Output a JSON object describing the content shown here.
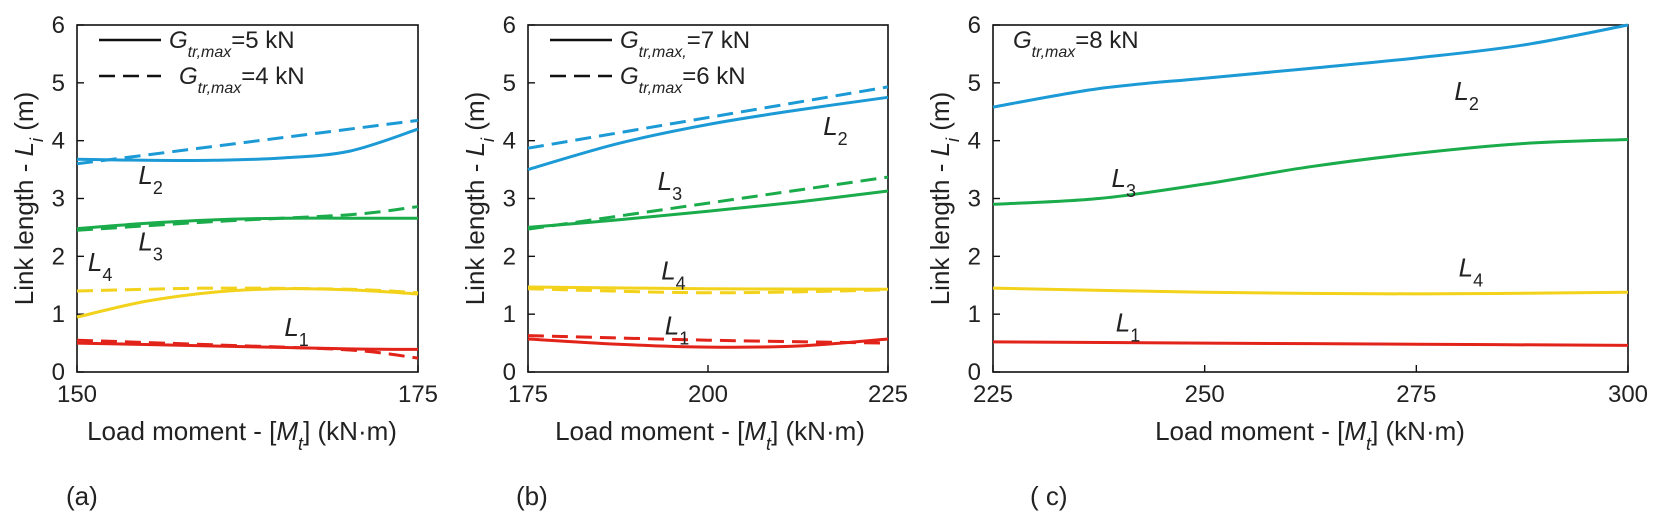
{
  "colors": {
    "L1": "#e2231a",
    "L2": "#1b9ad6",
    "L3": "#1aab4b",
    "L4": "#f2d21b"
  },
  "chart_data": [
    {
      "type": "line",
      "panel_label": "(a)",
      "xlabel": "Load moment - [Mt] (kN·m)",
      "ylabel": "Link length - Li (m)",
      "xlim": [
        150,
        175
      ],
      "ylim": [
        0,
        6
      ],
      "xticks": [
        150,
        175
      ],
      "yticks": [
        0,
        1,
        2,
        3,
        4,
        5,
        6
      ],
      "legend": [
        {
          "style": "solid",
          "text": "Gtr,max=5 kN"
        },
        {
          "style": "dashed",
          "text": "Gtr,max=4 kN"
        }
      ],
      "series": [
        {
          "name": "L2",
          "color_key": "L2",
          "dashed": false,
          "x": [
            150,
            155,
            160,
            165,
            170,
            175
          ],
          "y": [
            3.68,
            3.66,
            3.66,
            3.7,
            3.82,
            4.2
          ]
        },
        {
          "name": "L2",
          "color_key": "L2",
          "dashed": true,
          "x": [
            150,
            175
          ],
          "y": [
            3.6,
            4.35
          ]
        },
        {
          "name": "L3",
          "color_key": "L3",
          "dashed": false,
          "x": [
            150,
            155,
            160,
            165,
            170,
            175
          ],
          "y": [
            2.48,
            2.57,
            2.63,
            2.66,
            2.66,
            2.66
          ]
        },
        {
          "name": "L3",
          "color_key": "L3",
          "dashed": true,
          "x": [
            150,
            160,
            170,
            175
          ],
          "y": [
            2.45,
            2.6,
            2.72,
            2.86
          ]
        },
        {
          "name": "L4",
          "color_key": "L4",
          "dashed": false,
          "x": [
            150,
            155,
            160,
            165,
            170,
            175
          ],
          "y": [
            0.95,
            1.22,
            1.38,
            1.44,
            1.42,
            1.35
          ]
        },
        {
          "name": "L4",
          "color_key": "L4",
          "dashed": true,
          "x": [
            150,
            160,
            170,
            175
          ],
          "y": [
            1.4,
            1.45,
            1.43,
            1.37
          ]
        },
        {
          "name": "L1",
          "color_key": "L1",
          "dashed": false,
          "x": [
            150,
            160,
            170,
            175
          ],
          "y": [
            0.5,
            0.45,
            0.4,
            0.39
          ]
        },
        {
          "name": "L1",
          "color_key": "L1",
          "dashed": true,
          "x": [
            150,
            160,
            170,
            175
          ],
          "y": [
            0.55,
            0.47,
            0.38,
            0.24
          ]
        }
      ],
      "annotations": [
        {
          "text": "L2",
          "x": 154.5,
          "y": 3.25
        },
        {
          "text": "L3",
          "x": 154.5,
          "y": 2.1
        },
        {
          "text": "L4",
          "x": 150.8,
          "y": 1.75
        },
        {
          "text": "L1",
          "x": 165.2,
          "y": 0.62
        }
      ]
    },
    {
      "type": "line",
      "panel_label": "(b)",
      "xlabel": "Load moment - [Mt] (kN·m)",
      "ylabel": "Link length - Li (m)",
      "xlim": [
        175,
        225
      ],
      "ylim": [
        0,
        6
      ],
      "xticks": [
        175,
        200,
        225
      ],
      "yticks": [
        0,
        1,
        2,
        3,
        4,
        5,
        6
      ],
      "legend": [
        {
          "style": "solid",
          "text": "Gtr,max,=7 kN"
        },
        {
          "style": "dashed",
          "text": "Gtr,max=6 kN"
        }
      ],
      "series": [
        {
          "name": "L2",
          "color_key": "L2",
          "dashed": false,
          "x": [
            175,
            187.5,
            200,
            212.5,
            225
          ],
          "y": [
            3.5,
            3.95,
            4.28,
            4.53,
            4.75
          ]
        },
        {
          "name": "L2",
          "color_key": "L2",
          "dashed": true,
          "x": [
            175,
            225
          ],
          "y": [
            3.87,
            4.93
          ]
        },
        {
          "name": "L3",
          "color_key": "L3",
          "dashed": false,
          "x": [
            175,
            187.5,
            200,
            212.5,
            225
          ],
          "y": [
            2.5,
            2.63,
            2.78,
            2.94,
            3.13
          ]
        },
        {
          "name": "L3",
          "color_key": "L3",
          "dashed": true,
          "x": [
            175,
            225
          ],
          "y": [
            2.47,
            3.37
          ]
        },
        {
          "name": "L4",
          "color_key": "L4",
          "dashed": false,
          "x": [
            175,
            200,
            225
          ],
          "y": [
            1.47,
            1.44,
            1.43
          ]
        },
        {
          "name": "L4",
          "color_key": "L4",
          "dashed": true,
          "x": [
            175,
            200,
            225
          ],
          "y": [
            1.44,
            1.37,
            1.42
          ]
        },
        {
          "name": "L1",
          "color_key": "L1",
          "dashed": false,
          "x": [
            175,
            187.5,
            200,
            212.5,
            225
          ],
          "y": [
            0.57,
            0.48,
            0.43,
            0.45,
            0.57
          ]
        },
        {
          "name": "L1",
          "color_key": "L1",
          "dashed": true,
          "x": [
            175,
            200,
            225
          ],
          "y": [
            0.63,
            0.55,
            0.5
          ]
        }
      ],
      "annotations": [
        {
          "text": "L2",
          "x": 216,
          "y": 4.1
        },
        {
          "text": "L3",
          "x": 193,
          "y": 3.15
        },
        {
          "text": "L4",
          "x": 193.5,
          "y": 1.6
        },
        {
          "text": "L1",
          "x": 194,
          "y": 0.65
        }
      ]
    },
    {
      "type": "line",
      "panel_label": "( c)",
      "xlabel": "Load moment - [Mt] (kN·m)",
      "ylabel": "Link length - Li (m)",
      "xlim": [
        225,
        300
      ],
      "ylim": [
        0,
        6
      ],
      "xticks": [
        225,
        250,
        275,
        300
      ],
      "yticks": [
        0,
        1,
        2,
        3,
        4,
        5,
        6
      ],
      "legend": [
        {
          "style": "none",
          "text": "Gtr,max=8 kN"
        }
      ],
      "series": [
        {
          "name": "L2",
          "color_key": "L2",
          "dashed": false,
          "x": [
            225,
            237.5,
            250,
            262.5,
            275,
            287.5,
            300
          ],
          "y": [
            4.58,
            4.9,
            5.08,
            5.25,
            5.43,
            5.65,
            6.0
          ]
        },
        {
          "name": "L3",
          "color_key": "L3",
          "dashed": false,
          "x": [
            225,
            237.5,
            250,
            262.5,
            275,
            287.5,
            300
          ],
          "y": [
            2.9,
            3.0,
            3.25,
            3.55,
            3.78,
            3.95,
            4.02
          ]
        },
        {
          "name": "L4",
          "color_key": "L4",
          "dashed": false,
          "x": [
            225,
            250,
            275,
            300
          ],
          "y": [
            1.45,
            1.38,
            1.35,
            1.38
          ]
        },
        {
          "name": "L1",
          "color_key": "L1",
          "dashed": false,
          "x": [
            225,
            250,
            275,
            300
          ],
          "y": [
            0.52,
            0.5,
            0.48,
            0.46
          ]
        }
      ],
      "annotations": [
        {
          "text": "L2",
          "x": 279.5,
          "y": 4.7
        },
        {
          "text": "L3",
          "x": 239,
          "y": 3.2
        },
        {
          "text": "L4",
          "x": 280,
          "y": 1.65
        },
        {
          "text": "L1",
          "x": 239.5,
          "y": 0.7
        }
      ]
    }
  ]
}
